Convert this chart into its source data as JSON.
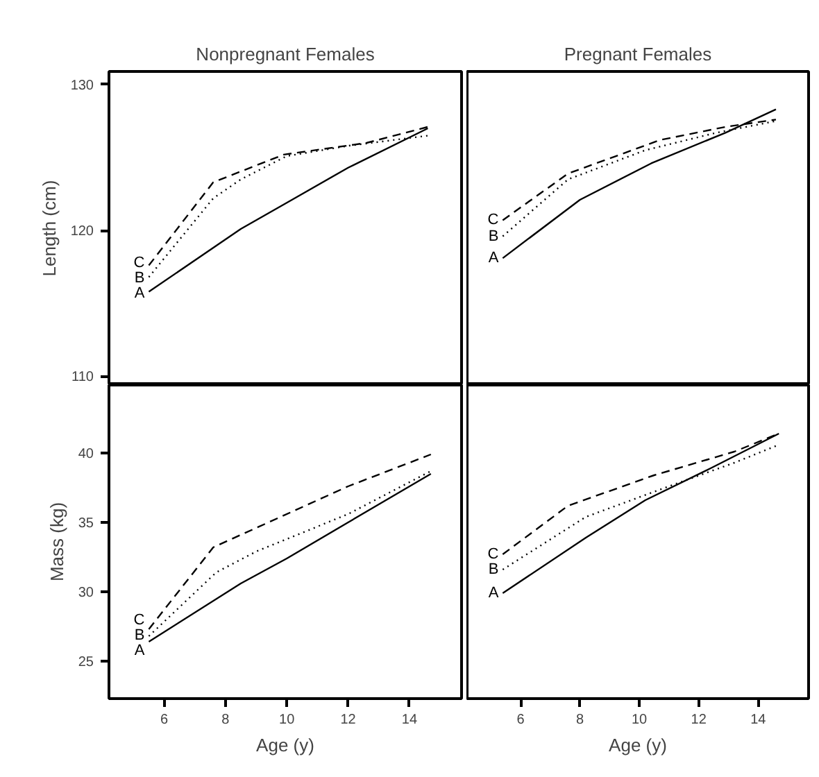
{
  "chart_data": [
    {
      "type": "line",
      "title": "Nonpregnant Females",
      "ylabel": "Length (cm)",
      "xlim": [
        4.2,
        15.7
      ],
      "xticks": [
        6,
        8,
        10,
        12,
        14
      ],
      "ylim": [
        109.4,
        130.9
      ],
      "yticks": [
        110,
        120,
        130
      ],
      "tick_labels": "y",
      "series": [
        {
          "name": "A",
          "color": "#000000",
          "line_style": "solid",
          "x": [
            5.5,
            8.5,
            10,
            12,
            14.6
          ],
          "values": [
            115.8,
            120.1,
            121.9,
            124.3,
            127.0
          ]
        },
        {
          "name": "B",
          "color": "#000000",
          "line_style": "dotted",
          "x": [
            5.5,
            7.6,
            8.5,
            10,
            12,
            14.6
          ],
          "values": [
            116.8,
            122.2,
            123.5,
            125.1,
            125.8,
            126.5
          ]
        },
        {
          "name": "C",
          "color": "#000000",
          "line_style": "dashed",
          "x": [
            5.5,
            7.6,
            9.9,
            12.6,
            14.6
          ],
          "values": [
            117.6,
            123.3,
            125.2,
            126.0,
            127.1
          ]
        }
      ]
    },
    {
      "type": "line",
      "title": "Pregnant Females",
      "xlim": [
        4.2,
        15.7
      ],
      "xticks": [
        6,
        8,
        10,
        12,
        14
      ],
      "ylim": [
        109.4,
        130.9
      ],
      "yticks": [
        110,
        120,
        130
      ],
      "tick_labels": false,
      "series": [
        {
          "name": "A",
          "color": "#000000",
          "line_style": "solid",
          "x": [
            5.4,
            8.0,
            10.4,
            12.9,
            14.6
          ],
          "values": [
            118.1,
            122.1,
            124.6,
            126.7,
            128.3
          ]
        },
        {
          "name": "B",
          "color": "#000000",
          "line_style": "dotted",
          "x": [
            5.4,
            7.6,
            10.2,
            12.6,
            14.6
          ],
          "values": [
            119.6,
            123.5,
            125.5,
            126.7,
            127.5
          ]
        },
        {
          "name": "C",
          "color": "#000000",
          "line_style": "dashed",
          "x": [
            5.4,
            7.6,
            10.7,
            12.9,
            14.6
          ],
          "values": [
            120.7,
            123.9,
            126.2,
            127.1,
            127.6
          ]
        }
      ]
    },
    {
      "type": "line",
      "xlabel": "Age (y)",
      "ylabel": "Mass (kg)",
      "xlim": [
        4.2,
        15.7
      ],
      "xticks": [
        6,
        8,
        10,
        12,
        14
      ],
      "ylim": [
        22.3,
        44.9
      ],
      "yticks": [
        25,
        30,
        35,
        40
      ],
      "series": [
        {
          "name": "A",
          "color": "#000000",
          "line_style": "solid",
          "x": [
            5.5,
            8.5,
            10,
            12,
            14.7
          ],
          "values": [
            26.4,
            30.6,
            32.4,
            35.0,
            38.5
          ]
        },
        {
          "name": "B",
          "color": "#000000",
          "line_style": "dotted",
          "x": [
            5.5,
            7.7,
            9.0,
            12,
            14.7
          ],
          "values": [
            26.8,
            31.4,
            32.9,
            35.6,
            38.7
          ]
        },
        {
          "name": "C",
          "color": "#000000",
          "line_style": "dashed",
          "x": [
            5.5,
            7.6,
            12,
            14.7
          ],
          "values": [
            27.3,
            33.2,
            37.6,
            39.9
          ]
        }
      ]
    },
    {
      "type": "line",
      "xlabel": "Age (y)",
      "xlim": [
        4.2,
        15.7
      ],
      "xticks": [
        6,
        8,
        10,
        12,
        14
      ],
      "ylim": [
        22.3,
        44.9
      ],
      "yticks": [
        25,
        30,
        35,
        40
      ],
      "tick_labels": "x",
      "series": [
        {
          "name": "A",
          "color": "#000000",
          "line_style": "solid",
          "x": [
            5.4,
            8.2,
            10.2,
            12.4,
            14.7
          ],
          "values": [
            29.9,
            33.9,
            36.6,
            38.9,
            41.4
          ]
        },
        {
          "name": "B",
          "color": "#000000",
          "line_style": "dotted",
          "x": [
            5.4,
            8.2,
            11.0,
            13.2,
            14.7
          ],
          "values": [
            31.6,
            35.4,
            37.6,
            39.3,
            40.6
          ]
        },
        {
          "name": "C",
          "color": "#000000",
          "line_style": "dashed",
          "x": [
            5.4,
            7.6,
            10.5,
            13.2,
            14.7
          ],
          "values": [
            32.7,
            36.2,
            38.4,
            40.1,
            41.4
          ]
        }
      ]
    }
  ]
}
